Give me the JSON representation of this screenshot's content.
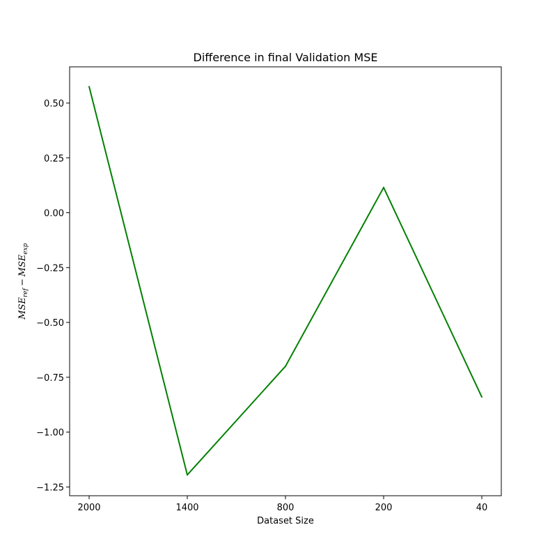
{
  "chart_data": {
    "type": "line",
    "title": "Difference in final Validation MSE",
    "xlabel": "Dataset Size",
    "ylabel": {
      "term1": "MSE",
      "term1_sub": "ref",
      "operator": "−",
      "term2": "MSE",
      "term2_sub": "exp"
    },
    "categories": [
      "2000",
      "1400",
      "800",
      "200",
      "40"
    ],
    "series": [
      {
        "color": "#008000",
        "values": [
          0.575,
          -1.195,
          -0.7,
          0.115,
          -0.84
        ]
      }
    ],
    "ylim": [
      -1.29,
      0.665
    ],
    "yticks": [
      {
        "value": 0.5,
        "label": "0.50"
      },
      {
        "value": 0.25,
        "label": "0.25"
      },
      {
        "value": 0.0,
        "label": "0.00"
      },
      {
        "value": -0.25,
        "label": "−0.25"
      },
      {
        "value": -0.5,
        "label": "−0.50"
      },
      {
        "value": -0.75,
        "label": "−0.75"
      },
      {
        "value": -1.0,
        "label": "−1.00"
      },
      {
        "value": -1.25,
        "label": "−1.25"
      }
    ],
    "grid": false,
    "legend": "none"
  }
}
